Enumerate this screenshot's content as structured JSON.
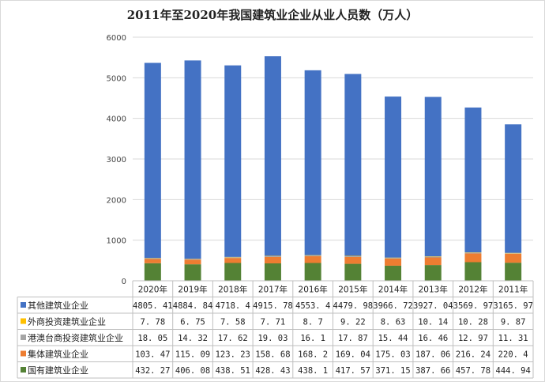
{
  "chart_data": {
    "type": "bar",
    "stacked": true,
    "title": "2011年至2020年我国建筑业企业从业人员数（万人）",
    "categories": [
      "2020年",
      "2019年",
      "2018年",
      "2017年",
      "2016年",
      "2015年",
      "2014年",
      "2013年",
      "2012年",
      "2011年"
    ],
    "ylim": [
      0,
      6000
    ],
    "yticks": [
      "0",
      "1000",
      "2000",
      "3000",
      "4000",
      "5000",
      "6000"
    ],
    "grid": true,
    "legend": "data-table",
    "series": [
      {
        "name": "国有建筑业企业",
        "color": "#548235",
        "values": [
          432.27,
          406.08,
          438.51,
          428.43,
          438.1,
          417.57,
          371.15,
          387.66,
          457.78,
          444.94
        ],
        "labels": [
          "432. 27",
          "406. 08",
          "438. 51",
          "428. 43",
          "438. 1",
          "417. 57",
          "371. 15",
          "387. 66",
          "457. 78",
          "444. 94"
        ]
      },
      {
        "name": "集体建筑业企业",
        "color": "#ed7d31",
        "values": [
          103.47,
          115.09,
          123.23,
          158.68,
          168.2,
          169.04,
          175.03,
          187.06,
          216.24,
          220.4
        ],
        "labels": [
          "103. 47",
          "115. 09",
          "123. 23",
          "158. 68",
          "168. 2",
          "169. 04",
          "175. 03",
          "187. 06",
          "216. 24",
          "220. 4"
        ]
      },
      {
        "name": "港澳台商投资建筑业企业",
        "color": "#a5a5a5",
        "values": [
          18.05,
          14.32,
          17.62,
          19.03,
          16.1,
          17.87,
          15.44,
          16.46,
          12.97,
          11.31
        ],
        "labels": [
          "18. 05",
          "14. 32",
          "17. 62",
          "19. 03",
          "16. 1",
          "17. 87",
          "15. 44",
          "16. 46",
          "12. 97",
          "11. 31"
        ]
      },
      {
        "name": "外商投资建筑业企业",
        "color": "#ffc000",
        "values": [
          7.78,
          6.75,
          7.58,
          7.71,
          8.7,
          9.22,
          8.63,
          10.14,
          10.28,
          9.87
        ],
        "labels": [
          "7. 78",
          "6. 75",
          "7. 58",
          "7. 71",
          "8. 7",
          "9. 22",
          "8. 63",
          "10. 14",
          "10. 28",
          "9. 87"
        ]
      },
      {
        "name": "其他建筑业企业",
        "color": "#4472c4",
        "values": [
          4805.41,
          4884.84,
          4718.4,
          4915.78,
          4553.4,
          4479.98,
          3966.72,
          3927.04,
          3569.97,
          3165.97
        ],
        "labels": [
          "4805. 41",
          "4884. 84",
          "4718. 4",
          "4915. 78",
          "4553. 4",
          "4479. 98",
          "3966. 72",
          "3927. 04",
          "3569. 97",
          "3165. 97"
        ]
      }
    ],
    "table_order": [
      "其他建筑业企业",
      "外商投资建筑业企业",
      "港澳台商投资建筑业企业",
      "集体建筑业企业",
      "国有建筑业企业"
    ]
  }
}
